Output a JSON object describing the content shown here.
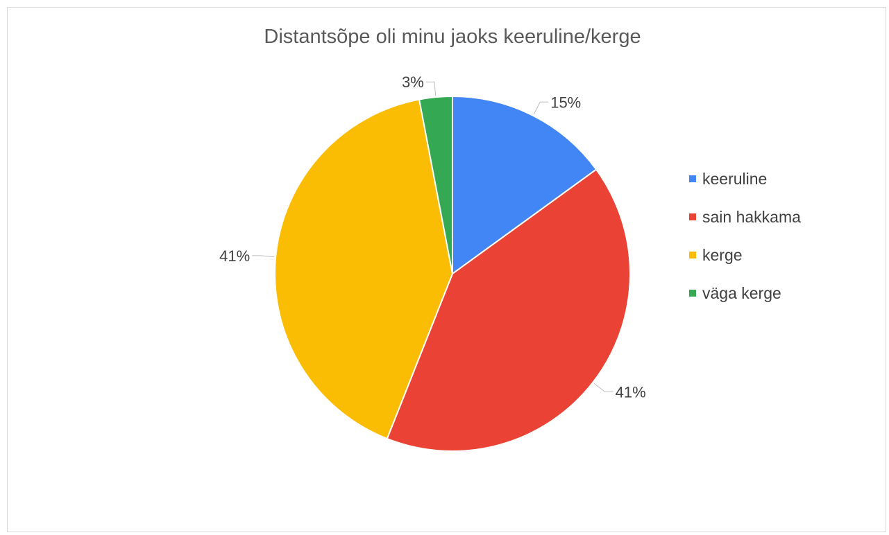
{
  "chart_data": {
    "type": "pie",
    "title": "Distantsõpe oli minu jaoks keeruline/kerge",
    "categories": [
      "keeruline",
      "sain hakkama",
      "kerge",
      "väga kerge"
    ],
    "values": [
      15,
      41,
      41,
      3
    ],
    "labels": [
      "15%",
      "41%",
      "41%",
      "3%"
    ],
    "colors": [
      "#4285f4",
      "#ea4335",
      "#fbbc04",
      "#34a853"
    ],
    "legend_position": "right"
  }
}
